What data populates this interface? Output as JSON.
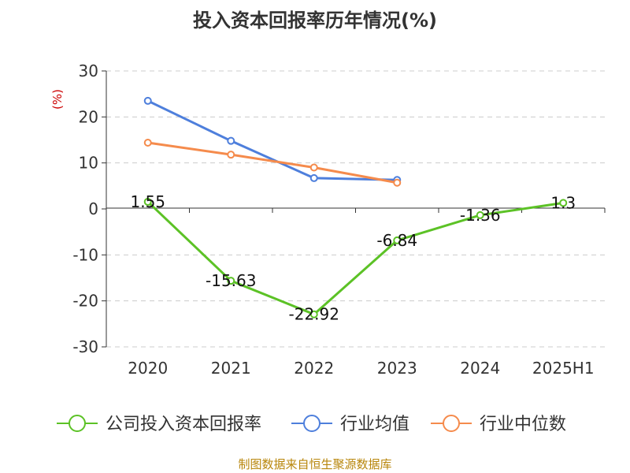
{
  "chart_data": {
    "type": "line",
    "title": "投入资本回报率历年情况(%)",
    "ylabel": "(%)",
    "xlabel": "",
    "categories": [
      "2020",
      "2021",
      "2022",
      "2023",
      "2024",
      "2025H1"
    ],
    "ylim": [
      -30,
      30
    ],
    "yticks": [
      30,
      20,
      10,
      0,
      -10,
      -20,
      -30
    ],
    "grid": true,
    "legend_position": "bottom",
    "series": [
      {
        "name": "公司投入资本回报率",
        "color": "#5cc226",
        "values": [
          1.55,
          -15.63,
          -22.92,
          -6.84,
          -1.36,
          1.3
        ],
        "labels": [
          "1.55",
          "-15.63",
          "-22.92",
          "-6.84",
          "-1.36",
          "1.3"
        ]
      },
      {
        "name": "行业均值",
        "color": "#4e7fdc",
        "values": [
          23.5,
          14.8,
          6.7,
          6.3,
          null,
          null
        ]
      },
      {
        "name": "行业中位数",
        "color": "#f58b4c",
        "values": [
          14.4,
          11.8,
          9.0,
          5.7,
          null,
          null
        ]
      }
    ]
  },
  "source": "制图数据来自恒生聚源数据库"
}
